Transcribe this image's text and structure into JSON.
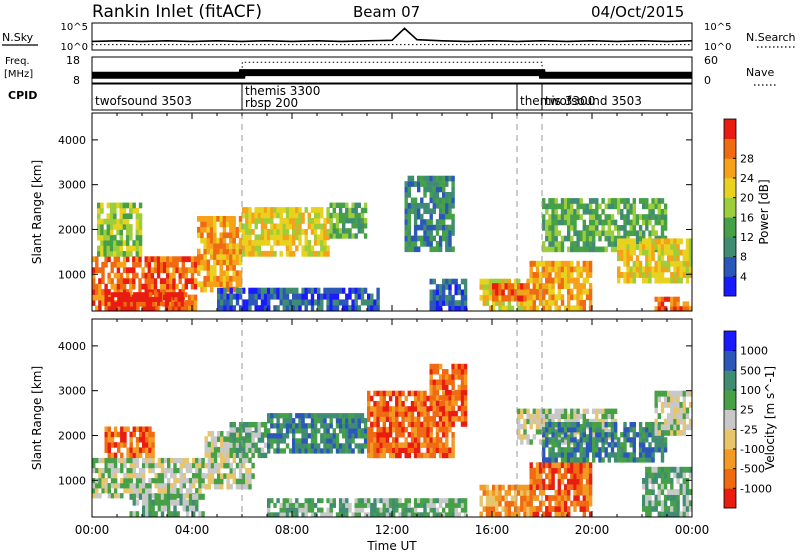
{
  "header": {
    "station": "Rankin Inlet (fitACF)",
    "beam": "Beam 07",
    "date": "04/Oct/2015"
  },
  "colors": {
    "power_scale": [
      "#1a1aff",
      "#2b58b8",
      "#3f8c73",
      "#46a046",
      "#9ccd3a",
      "#e8d21e",
      "#f5a21a",
      "#f06a12",
      "#e81c10"
    ],
    "velocity_scale": [
      "#e81c10",
      "#f06a12",
      "#f29a24",
      "#e8c46a",
      "#c8c8c8",
      "#46a046",
      "#3f8c73",
      "#2b58b8",
      "#1a1aff"
    ],
    "ground_scatter": "#bdbdbd"
  },
  "chart_data": [
    {
      "type": "line",
      "panel": "noise",
      "left_label": "N.Sky",
      "right_label": "N.Search",
      "left_ticks": [
        "10^5",
        "10^0"
      ],
      "right_ticks": [
        "10^5",
        "10^0"
      ],
      "ylim": [
        0,
        5
      ],
      "x_hours": [
        0,
        1,
        2,
        3,
        4,
        5,
        6,
        7,
        8,
        9,
        10,
        11,
        12,
        12.5,
        13,
        14,
        15,
        16,
        17,
        18,
        19,
        20,
        21,
        22,
        23,
        24
      ],
      "n_sky": [
        1.6,
        1.7,
        1.6,
        1.7,
        1.6,
        1.7,
        1.6,
        1.7,
        1.6,
        1.7,
        1.6,
        1.7,
        1.8,
        4.0,
        1.9,
        1.7,
        1.6,
        1.7,
        1.6,
        1.7,
        1.6,
        1.7,
        1.6,
        1.7,
        1.6,
        1.7
      ],
      "n_search": [
        1.0,
        1.0,
        1.0,
        1.0,
        1.0,
        1.0,
        1.0,
        1.0,
        1.0,
        1.0,
        1.0,
        1.0,
        1.0,
        1.0,
        1.0,
        1.0,
        1.0,
        1.0,
        1.0,
        1.0,
        1.0,
        1.0,
        1.0,
        1.0,
        1.0,
        1.0
      ]
    },
    {
      "type": "line",
      "panel": "frequency",
      "left_label_top": "Freq.",
      "left_label_bottom": "[MHz]",
      "right_label": "Nave",
      "left_ticks": [
        "18",
        "8"
      ],
      "right_ticks": [
        "60",
        "0"
      ],
      "ylim": [
        8,
        18
      ],
      "freq_hours": [
        0,
        6,
        6.01,
        18,
        18.01,
        24
      ],
      "freq_mhz": [
        11.0,
        11.0,
        12.0,
        12.0,
        11.0,
        11.0
      ],
      "nave_hours": [
        0,
        6,
        6.01,
        18,
        18.01,
        24
      ],
      "nave": [
        12,
        12,
        48,
        48,
        12,
        12
      ]
    },
    {
      "type": "table",
      "panel": "cpid",
      "label": "CPID",
      "entries": [
        {
          "start_hour": 0,
          "lines": [
            "twofsound 3503"
          ]
        },
        {
          "start_hour": 6,
          "lines": [
            "themis 3300",
            "rbsp 200"
          ]
        },
        {
          "start_hour": 17,
          "lines": [
            "themis 3300"
          ]
        },
        {
          "start_hour": 18,
          "lines": [
            "twofsound 3503"
          ]
        }
      ]
    },
    {
      "type": "heatmap",
      "panel": "power",
      "ylabel": "Slant Range [km]",
      "yticks": [
        1000,
        2000,
        3000,
        4000
      ],
      "ylim": [
        180,
        4600
      ],
      "colorbar_label": "Power [dB]",
      "colorbar_ticks": [
        "4",
        "8",
        "12",
        "16",
        "20",
        "24",
        "28"
      ],
      "regions": [
        {
          "t0": 0.0,
          "t1": 4.2,
          "r0": 180,
          "r1": 1400,
          "level": 7
        },
        {
          "t0": 0.5,
          "t1": 3.8,
          "r0": 180,
          "r1": 600,
          "level": 8
        },
        {
          "t0": 0.2,
          "t1": 2.0,
          "r0": 1400,
          "r1": 2600,
          "level": 4
        },
        {
          "t0": 4.2,
          "t1": 6.0,
          "r0": 600,
          "r1": 2300,
          "level": 6
        },
        {
          "t0": 5.0,
          "t1": 6.5,
          "r0": 180,
          "r1": 700,
          "level": 1
        },
        {
          "t0": 6.0,
          "t1": 9.5,
          "r0": 1400,
          "r1": 2500,
          "level": 5
        },
        {
          "t0": 6.5,
          "t1": 11.5,
          "r0": 180,
          "r1": 700,
          "level": 1
        },
        {
          "t0": 9.5,
          "t1": 11.0,
          "r0": 1800,
          "r1": 2600,
          "level": 3
        },
        {
          "t0": 12.5,
          "t1": 14.5,
          "r0": 1500,
          "r1": 3200,
          "level": 2
        },
        {
          "t0": 13.5,
          "t1": 15.0,
          "r0": 180,
          "r1": 900,
          "level": 1
        },
        {
          "t0": 15.5,
          "t1": 17.5,
          "r0": 180,
          "r1": 900,
          "level": 5
        },
        {
          "t0": 16.0,
          "t1": 17.5,
          "r0": 400,
          "r1": 800,
          "level": 7
        },
        {
          "t0": 17.5,
          "t1": 20.0,
          "r0": 180,
          "r1": 1300,
          "level": 6
        },
        {
          "t0": 18.0,
          "t1": 23.0,
          "r0": 1500,
          "r1": 2700,
          "level": 3
        },
        {
          "t0": 21.0,
          "t1": 24.0,
          "r0": 800,
          "r1": 1800,
          "level": 5
        },
        {
          "t0": 22.5,
          "t1": 24.0,
          "r0": 180,
          "r1": 500,
          "level": 7
        }
      ]
    },
    {
      "type": "heatmap",
      "panel": "velocity",
      "ylabel": "Slant Range [km]",
      "yticks": [
        1000,
        2000,
        3000,
        4000
      ],
      "ylim": [
        180,
        4600
      ],
      "xlabel": "Time UT",
      "xticks": [
        "00:00",
        "04:00",
        "08:00",
        "12:00",
        "16:00",
        "20:00",
        "00:00"
      ],
      "xlim_hours": [
        0,
        24
      ],
      "colorbar_label": "Velocity [m s^-1]",
      "colorbar_ticks": [
        "-1000",
        "-500",
        "-100",
        "-25",
        "25",
        "100",
        "500",
        "1000"
      ],
      "regions": [
        {
          "t0": 0.0,
          "t1": 4.5,
          "r0": 600,
          "r1": 1500,
          "level": 4
        },
        {
          "t0": 0.5,
          "t1": 2.5,
          "r0": 1500,
          "r1": 2200,
          "level": 1
        },
        {
          "t0": 1.5,
          "t1": 4.5,
          "r0": 180,
          "r1": 700,
          "level": 5
        },
        {
          "t0": 4.5,
          "t1": 6.5,
          "r0": 800,
          "r1": 2100,
          "level": 4
        },
        {
          "t0": 5.5,
          "t1": 7.0,
          "r0": 1500,
          "r1": 2300,
          "level": 5
        },
        {
          "t0": 7.0,
          "t1": 11.0,
          "r0": 1600,
          "r1": 2500,
          "level": 6
        },
        {
          "t0": 7.0,
          "t1": 15.0,
          "r0": 180,
          "r1": 600,
          "level": 5
        },
        {
          "t0": 11.0,
          "t1": 14.5,
          "r0": 1500,
          "r1": 3000,
          "level": 1
        },
        {
          "t0": 13.5,
          "t1": 15.0,
          "r0": 2200,
          "r1": 3600,
          "level": 1
        },
        {
          "t0": 15.5,
          "t1": 17.5,
          "r0": 180,
          "r1": 900,
          "level": 2
        },
        {
          "t0": 17.5,
          "t1": 20.0,
          "r0": 180,
          "r1": 1400,
          "level": 1
        },
        {
          "t0": 17.0,
          "t1": 21.0,
          "r0": 1800,
          "r1": 2600,
          "level": 4
        },
        {
          "t0": 18.0,
          "t1": 23.0,
          "r0": 1400,
          "r1": 2300,
          "level": 6
        },
        {
          "t0": 22.5,
          "t1": 24.0,
          "r0": 2000,
          "r1": 3000,
          "level": 4
        },
        {
          "t0": 22.0,
          "t1": 24.0,
          "r0": 180,
          "r1": 1300,
          "level": 5
        }
      ]
    }
  ]
}
